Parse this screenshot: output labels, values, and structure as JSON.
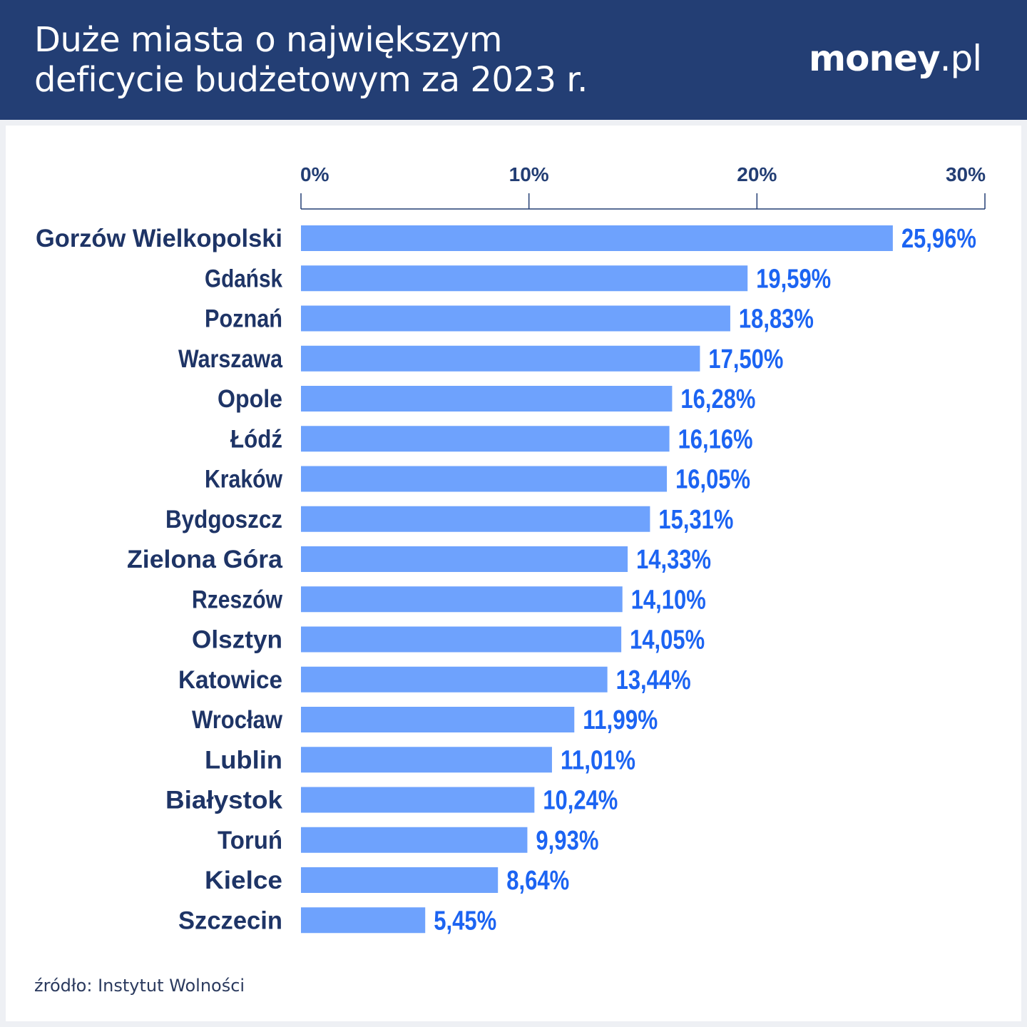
{
  "header": {
    "title_line1": "Duże miasta o największym",
    "title_line2": "deficycie budżetowym za 2023 r.",
    "logo_brand": "money",
    "logo_tld": ".pl"
  },
  "colors": {
    "header_bg": "#233e74",
    "bar": "#6ea2fd",
    "value_label": "#1c64f2",
    "category_label": "#1e3466",
    "axis": "#233e74"
  },
  "chart_data": {
    "type": "bar",
    "orientation": "horizontal",
    "title": "Duże miasta o największym deficycie budżetowym za 2023 r.",
    "xlabel": "",
    "ylabel": "",
    "xlim": [
      0,
      30
    ],
    "ticks": [
      {
        "value": 0,
        "label": "0%"
      },
      {
        "value": 10,
        "label": "10%"
      },
      {
        "value": 20,
        "label": "20%"
      },
      {
        "value": 30,
        "label": "30%"
      }
    ],
    "axis_position": "top",
    "grid": false,
    "categories": [
      "Gorzów Wielkopolski",
      "Gdańsk",
      "Poznań",
      "Warszawa",
      "Opole",
      "Łódź",
      "Kraków",
      "Bydgoszcz",
      "Zielona Góra",
      "Rzeszów",
      "Olsztyn",
      "Katowice",
      "Wrocław",
      "Lublin",
      "Białystok",
      "Toruń",
      "Kielce",
      "Szczecin"
    ],
    "values": [
      25.96,
      19.59,
      18.83,
      17.5,
      16.28,
      16.16,
      16.05,
      15.31,
      14.33,
      14.1,
      14.05,
      13.44,
      11.99,
      11.01,
      10.24,
      9.93,
      8.64,
      5.45
    ],
    "value_labels": [
      "25,96%",
      "19,59%",
      "18,83%",
      "17,50%",
      "16,28%",
      "16,16%",
      "16,05%",
      "15,31%",
      "14,33%",
      "14,10%",
      "14,05%",
      "13,44%",
      "11,99%",
      "11,01%",
      "10,24%",
      "9,93%",
      "8,64%",
      "5,45%"
    ]
  },
  "footer": {
    "source": "źródło: Instytut Wolności"
  }
}
